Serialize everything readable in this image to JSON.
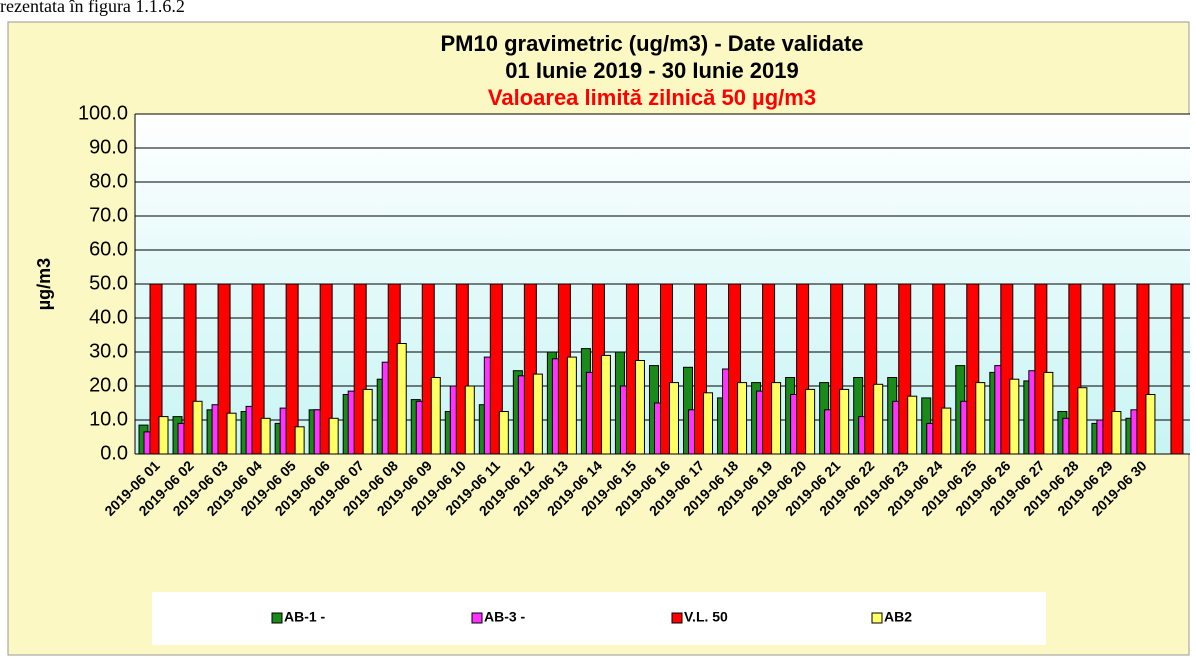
{
  "caption": "rezentata în figura 1.1.6.2",
  "chart_data": {
    "type": "bar",
    "title": "PM10 gravimetric (ug/m3) - Date validate",
    "subtitle": "01 Iunie 2019 - 30 Iunie 2019",
    "annotation": "Valoarea limită zilnică 50 µg/m3",
    "ylabel": "µg/m3",
    "categories": [
      "2019-06 01",
      "2019-06 02",
      "2019-06 03",
      "2019-06 04",
      "2019-06 05",
      "2019-06 06",
      "2019-06 07",
      "2019-06 08",
      "2019-06 09",
      "2019-06 10",
      "2019-06 11",
      "2019-06 12",
      "2019-06 13",
      "2019-06 14",
      "2019-06 15",
      "2019-06 16",
      "2019-06 17",
      "2019-06 18",
      "2019-06 19",
      "2019-06 20",
      "2019-06 21",
      "2019-06 22",
      "2019-06 23",
      "2019-06 24",
      "2019-06 25",
      "2019-06 26",
      "2019-06 27",
      "2019-06 28",
      "2019-06 29",
      "2019-06 30",
      null
    ],
    "series": [
      {
        "name": "AB-1 -",
        "color": "#1a8a1a",
        "values": [
          8.5,
          11,
          13,
          12.5,
          9,
          13,
          17.5,
          22,
          16,
          12.5,
          14.5,
          24.5,
          30,
          31,
          30,
          26,
          25.5,
          16.5,
          21,
          22.5,
          21,
          22.5,
          22.5,
          16.5,
          26,
          24,
          21.5,
          12.5,
          9,
          10.5,
          null
        ]
      },
      {
        "name": "AB-3 -",
        "color": "#ff33ff",
        "values": [
          6.5,
          9,
          14.5,
          14,
          13.5,
          13,
          18.5,
          27,
          15.5,
          20,
          28.5,
          23,
          28,
          24,
          20,
          15,
          13,
          25,
          18.5,
          17.5,
          13,
          11,
          15.5,
          9,
          15.5,
          26,
          24.5,
          10.5,
          10,
          13,
          null
        ]
      },
      {
        "name": "V.L. 50",
        "color": "#ff0000",
        "values": [
          50,
          50,
          50,
          50,
          50,
          50,
          50,
          50,
          50,
          50,
          50,
          50,
          50,
          50,
          50,
          50,
          50,
          50,
          50,
          50,
          50,
          50,
          50,
          50,
          50,
          50,
          50,
          50,
          50,
          50,
          50
        ]
      },
      {
        "name": "AB2",
        "color": "#ffff66",
        "values": [
          11,
          15.5,
          12,
          10.5,
          8,
          10.5,
          19,
          32.5,
          22.5,
          20,
          12.5,
          23.5,
          28.5,
          29,
          27.5,
          21,
          18,
          21,
          21,
          19,
          19,
          20.5,
          17,
          13.5,
          21,
          22,
          24,
          19.5,
          12.5,
          17.5,
          null
        ]
      }
    ],
    "ylim": [
      0,
      100
    ],
    "yticks": [
      {
        "value": 0,
        "label": "0.0"
      },
      {
        "value": 10,
        "label": "10.0"
      },
      {
        "value": 20,
        "label": "20.0"
      },
      {
        "value": 30,
        "label": "30.0"
      },
      {
        "value": 40,
        "label": "40.0"
      },
      {
        "value": 50,
        "label": "50.0"
      },
      {
        "value": 60,
        "label": "60.0"
      },
      {
        "value": 70,
        "label": "70.0"
      },
      {
        "value": 80,
        "label": "80.0"
      },
      {
        "value": 90,
        "label": "90.0"
      },
      {
        "value": 100,
        "label": "100.0"
      }
    ],
    "grid": true,
    "legend": "bottom"
  }
}
